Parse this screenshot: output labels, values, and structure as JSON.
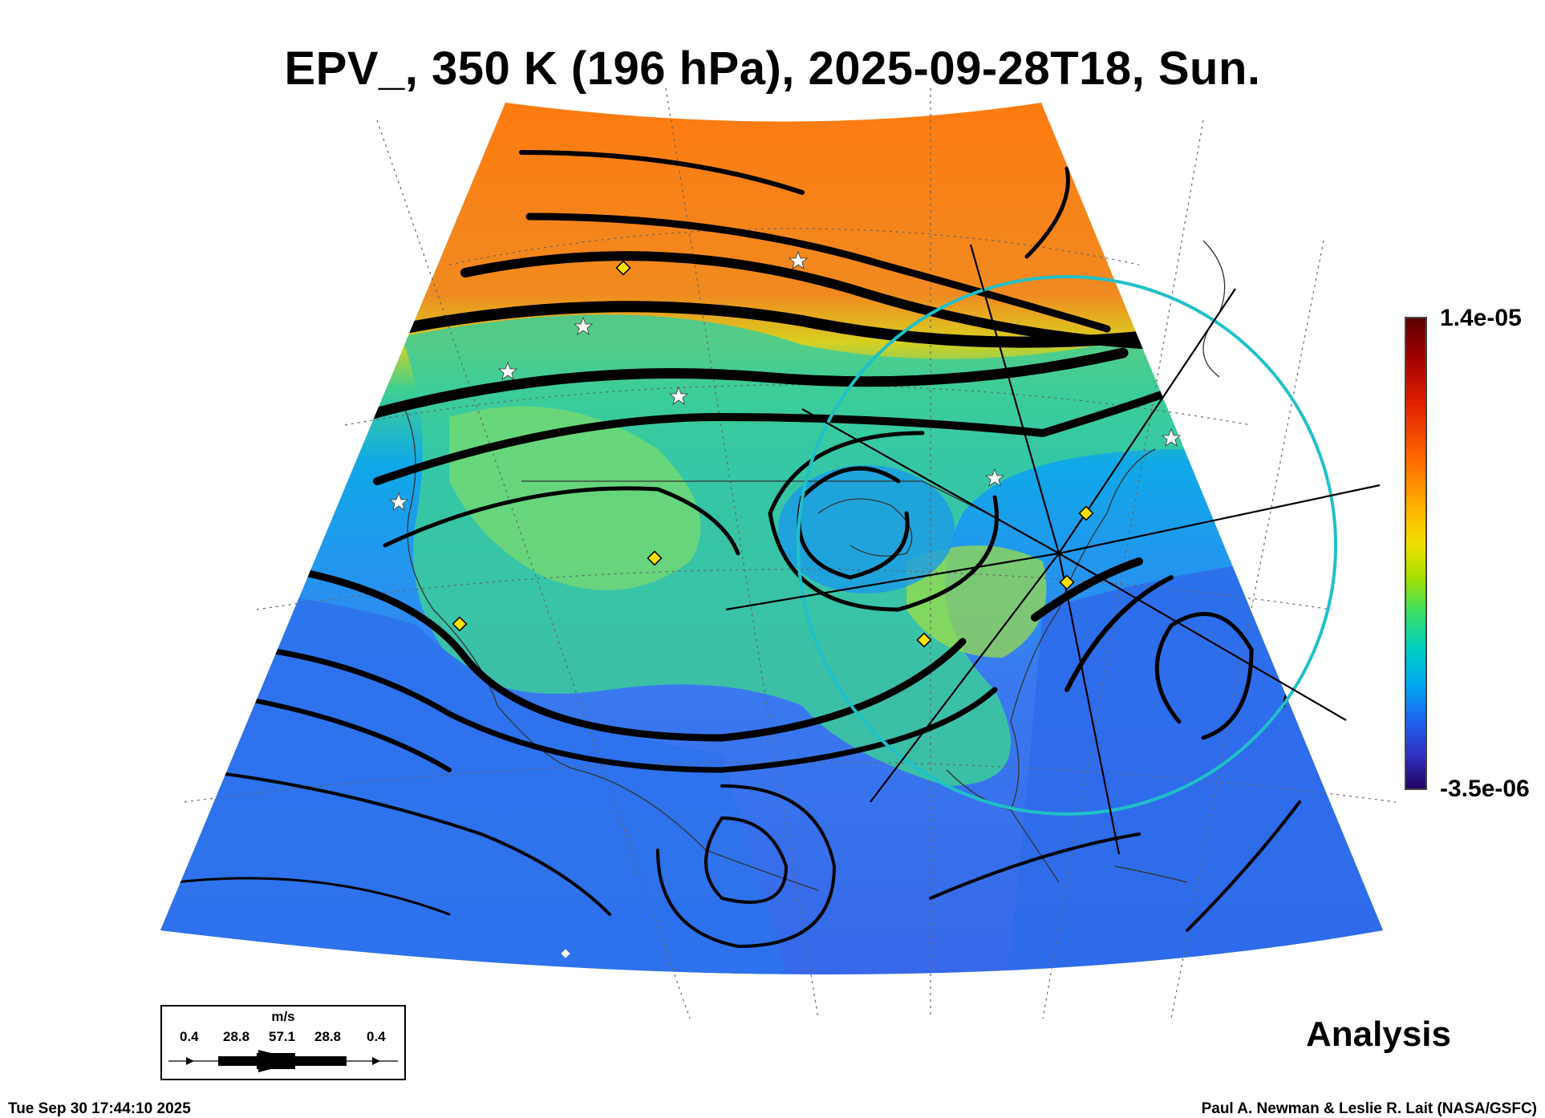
{
  "title": "EPV_, 350 K (196 hPa), 2025-09-28T18, Sun.",
  "colorbar": {
    "max_label": "1.4e-05",
    "min_label": "-3.5e-06",
    "colors": [
      "#5a0000",
      "#a00000",
      "#e02000",
      "#ff6a00",
      "#ffb000",
      "#f0e000",
      "#a8e000",
      "#40e060",
      "#00d0c0",
      "#00a8f0",
      "#2060f0",
      "#3030c0",
      "#200060"
    ]
  },
  "wind_legend": {
    "unit": "m/s",
    "values": [
      "0.4",
      "28.8",
      "57.1",
      "28.8",
      "0.4"
    ]
  },
  "label_analysis": "Analysis",
  "timestamp": "Tue Sep 30 17:44:10 2025",
  "credit": "Paul A. Newman & Leslie R. Lait (NASA/GSFC)",
  "map_style": {
    "projection": "conic",
    "region": "North America",
    "streamline_color": "#000000",
    "circle_color": "#20c0c8",
    "diamond_color": "#ffe000",
    "star_color": "#ffffff"
  }
}
